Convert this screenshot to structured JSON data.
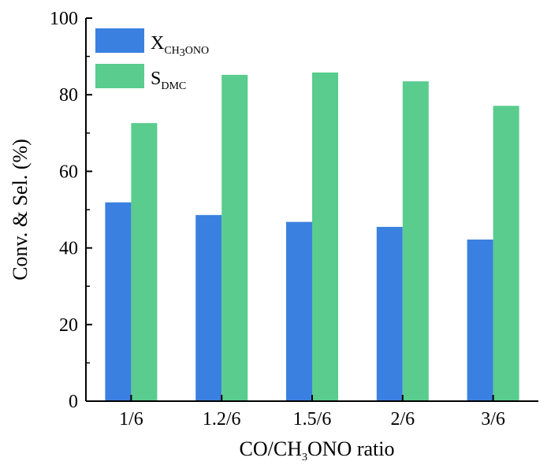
{
  "chart_data": {
    "type": "bar",
    "categories": [
      "1/6",
      "1.2/6",
      "1.5/6",
      "2/6",
      "3/6"
    ],
    "series": [
      {
        "name": "X_CH3ONO",
        "values": [
          51.9,
          48.6,
          46.8,
          45.5,
          42.2
        ],
        "color": "#3a80e0"
      },
      {
        "name": "S_DMC",
        "values": [
          72.6,
          85.2,
          85.8,
          83.5,
          77.1
        ],
        "color": "#59cc8e"
      }
    ],
    "legend_labels": [
      {
        "main": "X",
        "sub": "CH",
        "sub2": "3",
        "sub3": "ONO"
      },
      {
        "main": "S",
        "sub": "DMC"
      }
    ],
    "xlabel": {
      "pre": "CO/CH",
      "sub": "3",
      "post": "ONO ratio"
    },
    "ylabel": "Conv. & Sel. (%)",
    "ylim": [
      0,
      100
    ],
    "yticks": [
      0,
      20,
      40,
      60,
      80,
      100
    ],
    "legend_position": "top-left",
    "grid": false
  }
}
